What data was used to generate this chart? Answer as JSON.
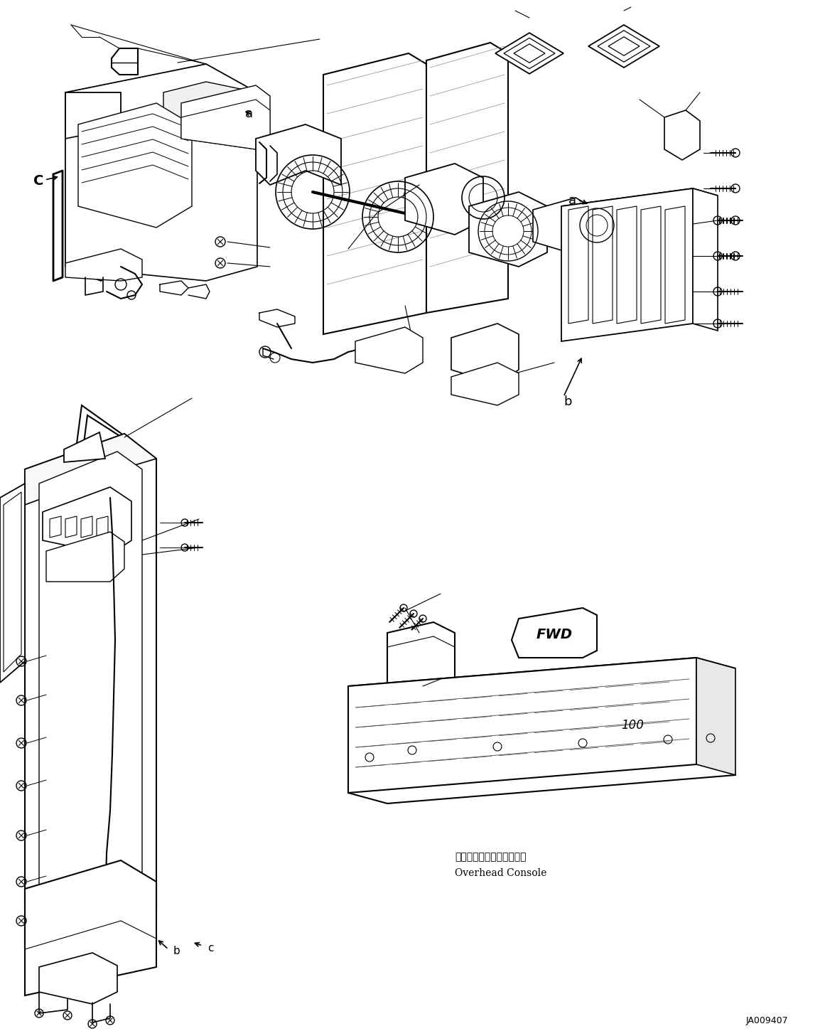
{
  "fig_width": 11.61,
  "fig_height": 14.57,
  "dpi": 100,
  "bg_color": "#ffffff",
  "line_color": "#000000",
  "diagram_id": "JA009407",
  "overhead_console_jp": "オーバーヘッドコンソール",
  "overhead_console_en": "Overhead Console",
  "fwd_text": "FWD"
}
